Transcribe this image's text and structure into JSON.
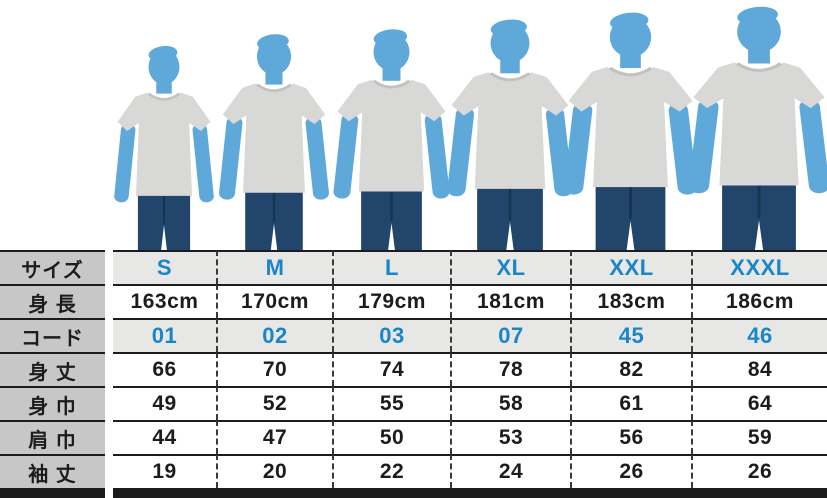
{
  "colors": {
    "accent_blue": "#1a86ca",
    "silhouette_blue": "#5fa8da",
    "shirt_gray": "#d8d8d6",
    "shirt_collar_gray": "#c2c2c0",
    "jeans_navy": "#21456b",
    "jeans_seam": "#16334f",
    "label_bg": "#c7c7c7",
    "highlight_row_bg": "#e7e7e5",
    "border_dark": "#1c1c1c"
  },
  "size_chart": {
    "columns": [
      "S",
      "M",
      "L",
      "XL",
      "XXL",
      "XXXL"
    ],
    "rows": [
      {
        "label": "サイズ",
        "values": [
          "S",
          "M",
          "L",
          "XL",
          "XXL",
          "XXXL"
        ],
        "style": "highlight-blue"
      },
      {
        "label": "身 長",
        "values": [
          "163cm",
          "170cm",
          "179cm",
          "181cm",
          "183cm",
          "186cm"
        ],
        "style": "plain"
      },
      {
        "label": "コード",
        "values": [
          "01",
          "02",
          "03",
          "07",
          "45",
          "46"
        ],
        "style": "highlight-blue"
      },
      {
        "label": "身 丈",
        "values": [
          "66",
          "70",
          "74",
          "78",
          "82",
          "84"
        ],
        "style": "plain"
      },
      {
        "label": "身 巾",
        "values": [
          "49",
          "52",
          "55",
          "58",
          "61",
          "64"
        ],
        "style": "plain"
      },
      {
        "label": "肩 巾",
        "values": [
          "44",
          "47",
          "50",
          "53",
          "56",
          "59"
        ],
        "style": "plain"
      },
      {
        "label": "袖 丈",
        "values": [
          "19",
          "20",
          "22",
          "24",
          "26",
          "26"
        ],
        "style": "plain"
      }
    ]
  },
  "figures": {
    "description": "six-model-lineup-wearing-gray-tshirts",
    "sizes": [
      "S",
      "M",
      "L",
      "XL",
      "XXL",
      "XXXL"
    ]
  }
}
